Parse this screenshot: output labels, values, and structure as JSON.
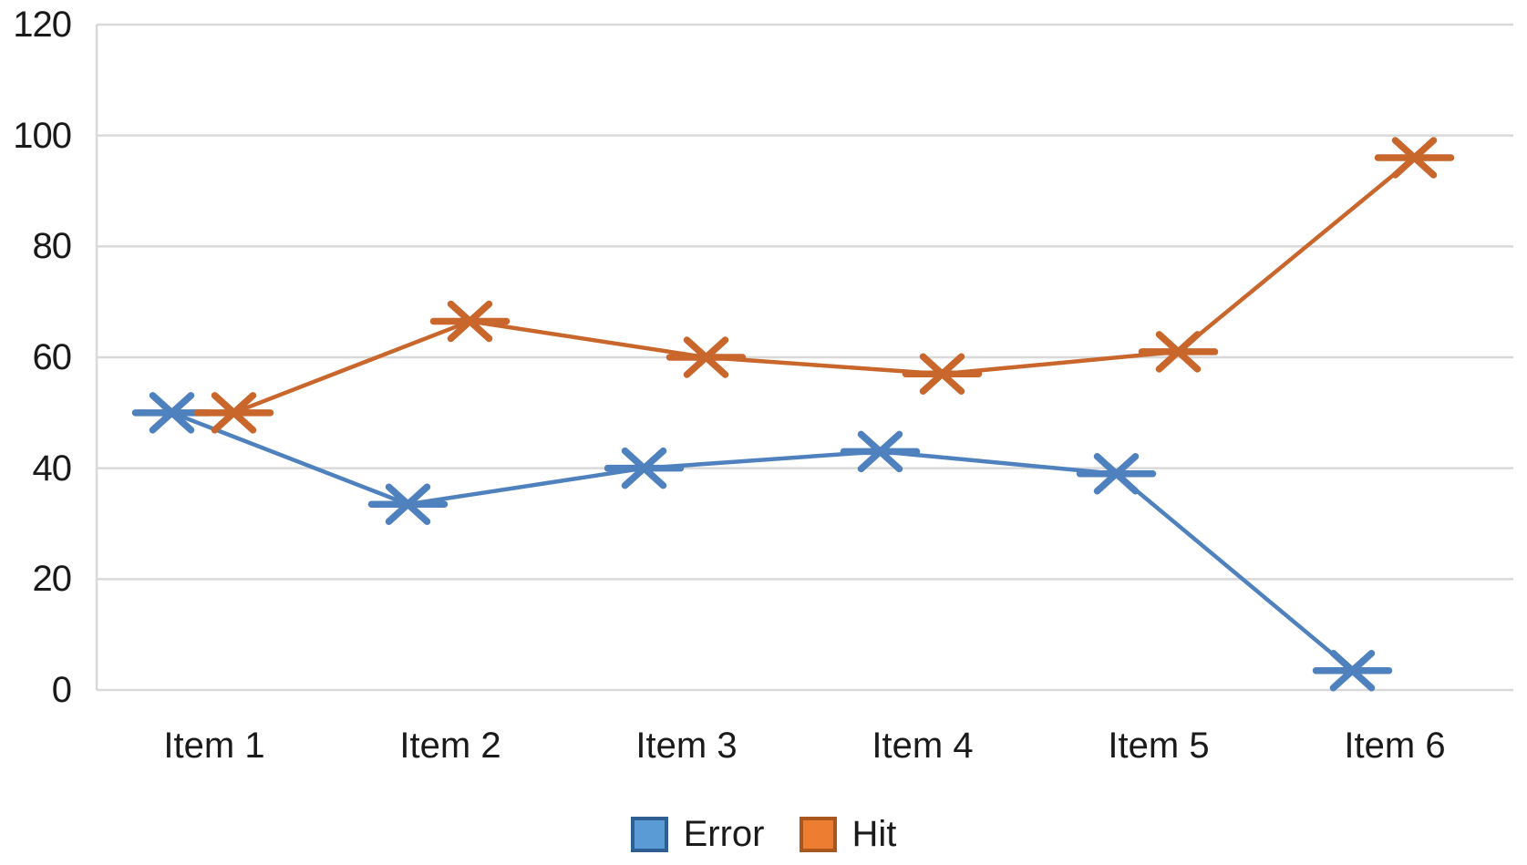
{
  "chart_data": {
    "type": "line",
    "title": "",
    "xlabel": "",
    "ylabel": "",
    "categories": [
      "Item 1",
      "Item 2",
      "Item 3",
      "Item 4",
      "Item 5",
      "Item 6"
    ],
    "series": [
      {
        "name": "Error",
        "values": [
          50,
          33.5,
          40,
          43,
          39,
          3.5
        ],
        "color": "#4e81bd",
        "legend_fill": "#5b9bd5",
        "legend_border": "#2f5f92"
      },
      {
        "name": "Hit",
        "values": [
          50,
          66.5,
          60,
          57,
          61,
          96
        ],
        "color": "#c8662c",
        "legend_fill": "#ed7d31",
        "legend_border": "#a9571c"
      }
    ],
    "ylim": [
      0,
      120
    ],
    "yticks": [
      0,
      20,
      40,
      60,
      80,
      100,
      120
    ],
    "ytick_labels": [
      "0",
      "20",
      "40",
      "60",
      "80",
      "100",
      "120"
    ],
    "grid": true,
    "gridline_color": "#d9d9d9",
    "axis_text_color": "#1a1a1a",
    "legend_position": "bottom",
    "marker_style": "x-with-horizontal-bar"
  }
}
